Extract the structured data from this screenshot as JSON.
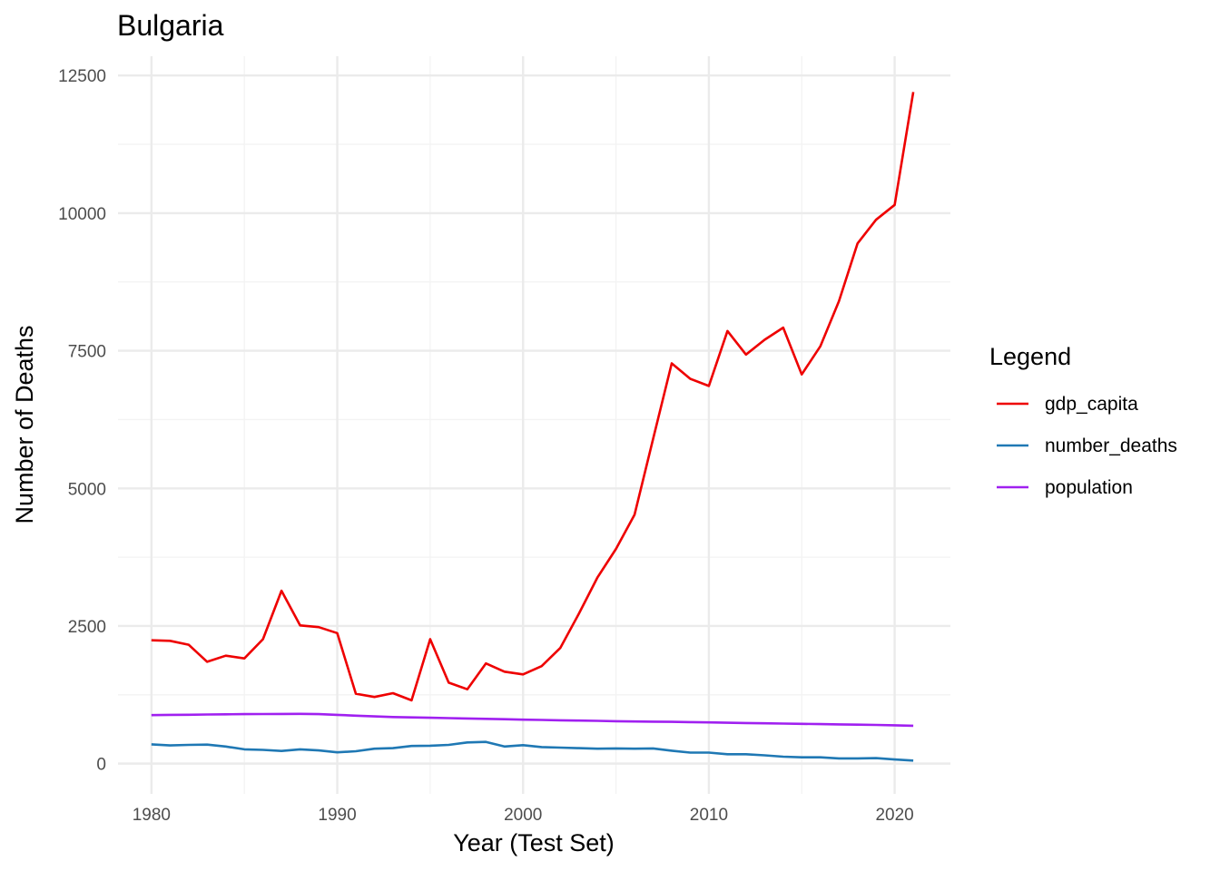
{
  "chart_data": {
    "type": "line",
    "title": "Bulgaria",
    "xlabel": "Year (Test Set)",
    "ylabel": "Number of Deaths",
    "xlim": [
      1978.2,
      2023
    ],
    "ylim": [
      -550,
      12850
    ],
    "x_ticks": [
      1980,
      1990,
      2000,
      2010,
      2020
    ],
    "y_ticks": [
      0,
      2500,
      5000,
      7500,
      10000,
      12500
    ],
    "grid": true,
    "legend": {
      "title": "Legend",
      "position": "right"
    },
    "x": [
      1980,
      1981,
      1982,
      1983,
      1984,
      1985,
      1986,
      1987,
      1988,
      1989,
      1990,
      1991,
      1992,
      1993,
      1994,
      1995,
      1996,
      1997,
      1998,
      1999,
      2000,
      2001,
      2002,
      2003,
      2004,
      2005,
      2006,
      2007,
      2008,
      2009,
      2010,
      2011,
      2012,
      2013,
      2014,
      2015,
      2016,
      2017,
      2018,
      2019,
      2020,
      2021
    ],
    "series": [
      {
        "name": "gdp_capita",
        "color": "#ee0000",
        "values": [
          2240,
          2230,
          2160,
          1850,
          1960,
          1910,
          2260,
          3140,
          2510,
          2480,
          2370,
          1270,
          1210,
          1280,
          1150,
          2260,
          1470,
          1350,
          1820,
          1670,
          1620,
          1770,
          2100,
          2720,
          3380,
          3900,
          4520,
          5900,
          7270,
          6990,
          6860,
          7860,
          7430,
          7700,
          7920,
          7070,
          7580,
          8400,
          9450,
          9880,
          10150,
          12200
        ]
      },
      {
        "name": "number_deaths",
        "color": "#1f78b4",
        "values": [
          350,
          330,
          340,
          345,
          310,
          260,
          250,
          230,
          260,
          240,
          205,
          225,
          270,
          280,
          320,
          325,
          340,
          385,
          395,
          310,
          335,
          300,
          290,
          280,
          270,
          275,
          270,
          275,
          235,
          200,
          200,
          170,
          170,
          150,
          125,
          115,
          115,
          95,
          95,
          100,
          75,
          55
        ]
      },
      {
        "name": "population",
        "color": "#a020f0",
        "values": [
          880,
          885,
          888,
          892,
          896,
          898,
          900,
          902,
          903,
          898,
          886,
          870,
          857,
          846,
          839,
          833,
          826,
          820,
          813,
          806,
          799,
          793,
          787,
          781,
          776,
          771,
          766,
          762,
          758,
          754,
          749,
          743,
          738,
          733,
          728,
          723,
          718,
          713,
          708,
          703,
          696,
          688
        ]
      }
    ]
  }
}
